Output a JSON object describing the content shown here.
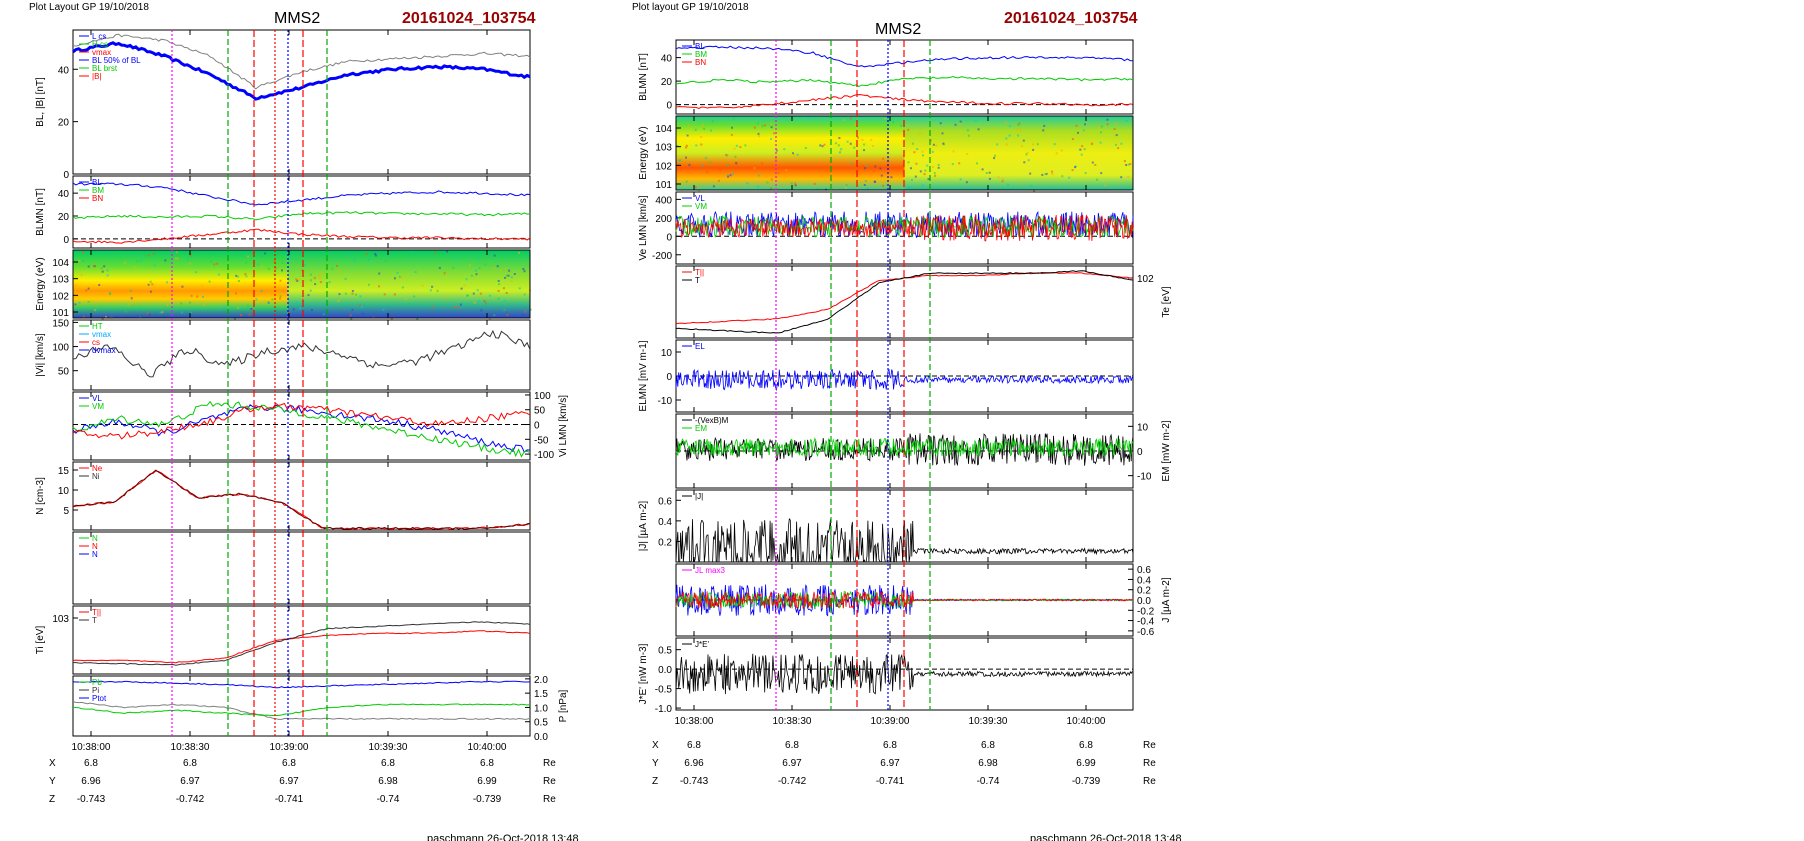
{
  "header": {
    "left": {
      "layout": "Plot Layout GP 19/10/2018",
      "sc": "MMS2",
      "event": "20161024_103754",
      "footer": "paschmann 26-Oct-2018 13:48"
    },
    "right": {
      "layout": "Plot layout GP 19/10/2018",
      "sc": "MMS2",
      "event": "20161024_103754",
      "footer": "paschmann 26-Oct-2018 13:48"
    }
  },
  "colors": {
    "event": "#990000",
    "red": "#ff0000",
    "green": "#00cc00",
    "blue": "#0000ff",
    "magenta": "#ff00ff",
    "gray": "#808080"
  },
  "time_axis": {
    "ticks": [
      "10:38:00",
      "10:38:30",
      "10:39:00",
      "10:39:30",
      "10:40:00"
    ]
  },
  "ephemeris": {
    "rows": [
      {
        "name": "X",
        "values": [
          "6.8",
          "6.8",
          "6.8",
          "6.8",
          "6.8"
        ],
        "unit": "Re"
      },
      {
        "name": "Y",
        "values": [
          "6.96",
          "6.97",
          "6.97",
          "6.98",
          "6.99"
        ],
        "unit": "Re"
      },
      {
        "name": "Z",
        "values": [
          "-0.743",
          "-0.742",
          "-0.741",
          "-0.74",
          "-0.739"
        ],
        "unit": "Re"
      }
    ]
  },
  "chart_data": [
    {
      "type": "line",
      "column": "left",
      "panel": 1,
      "ylabel": "BL, |B| [nT]",
      "yticks": [
        "0",
        "20",
        "40"
      ],
      "ylim": [
        0,
        55
      ],
      "legend": [
        "L cs",
        "H cs",
        "vmax",
        "BL 50% of BL",
        "BL brst",
        "|B|"
      ],
      "series": [
        {
          "name": "BL",
          "values": [
            47,
            50,
            45,
            38,
            29,
            33,
            38,
            40,
            41,
            40,
            37
          ]
        },
        {
          "name": "|B|",
          "values": [
            49,
            53,
            51,
            45,
            33,
            39,
            43,
            44,
            45,
            46,
            45
          ]
        }
      ]
    },
    {
      "type": "line",
      "column": "left",
      "panel": 2,
      "ylabel": "BLMN [nT]",
      "yticks": [
        "0",
        "20",
        "40"
      ],
      "ylim": [
        -8,
        55
      ],
      "legend": [
        "BL",
        "BM",
        "BN"
      ],
      "series": [
        {
          "name": "BL",
          "values": [
            48,
            48,
            45,
            37,
            30,
            34,
            38,
            40,
            41,
            40,
            38
          ]
        },
        {
          "name": "BM",
          "values": [
            18,
            20,
            19,
            20,
            17,
            22,
            23,
            22,
            22,
            21,
            22
          ]
        },
        {
          "name": "BN",
          "values": [
            -2,
            -3,
            0,
            4,
            8,
            4,
            2,
            1,
            1,
            0,
            0
          ]
        }
      ]
    },
    {
      "type": "heatmap",
      "column": "left",
      "panel": 3,
      "ylabel": "Energy (eV)",
      "yticks": [
        "10^4",
        "10^3",
        "10^2",
        "10^1"
      ]
    },
    {
      "type": "line",
      "column": "left",
      "panel": 4,
      "ylabel": "|Vi| [km/s]",
      "yticks": [
        "50",
        "100",
        "150"
      ],
      "ylim": [
        10,
        155
      ],
      "legend": [
        "HT",
        "vmax",
        "cs",
        "dvmax"
      ],
      "series": [
        {
          "name": "|Vi|",
          "values": [
            80,
            100,
            40,
            95,
            60,
            90,
            100,
            85,
            60,
            70,
            95,
            130,
            100
          ]
        }
      ]
    },
    {
      "type": "line",
      "column": "left",
      "panel": 5,
      "ylabel": "Vi LMN [km/s]",
      "yticks": [
        "100",
        "50",
        "0",
        "-50",
        "-100"
      ],
      "ylim": [
        -120,
        110
      ],
      "legend": [
        "VL",
        "VM"
      ],
      "series": [
        {
          "name": "VL",
          "values": [
            -20,
            10,
            -30,
            20,
            60,
            50,
            30,
            10,
            -20,
            -60,
            -90
          ]
        },
        {
          "name": "VM",
          "values": [
            -20,
            20,
            0,
            70,
            60,
            40,
            10,
            -20,
            -50,
            -80,
            -100
          ]
        },
        {
          "name": "VN",
          "values": [
            -30,
            -40,
            -20,
            10,
            60,
            60,
            40,
            20,
            0,
            20,
            40
          ]
        }
      ]
    },
    {
      "type": "line",
      "column": "left",
      "panel": 6,
      "ylabel": "N [cm-3]",
      "yticks": [
        "5",
        "10",
        "15"
      ],
      "ylim": [
        0,
        17
      ],
      "legend": [
        "Ne",
        "Ni"
      ],
      "series": [
        {
          "name": "Ne",
          "values": [
            6,
            7,
            15,
            8,
            9,
            7,
            0.5,
            0.4,
            0.4,
            0.4,
            0.5,
            1.5
          ]
        },
        {
          "name": "Ni",
          "values": [
            6,
            7,
            15,
            8,
            9,
            7,
            0.5,
            0.4,
            0.4,
            0.4,
            0.5,
            1.5
          ]
        }
      ]
    },
    {
      "type": "line",
      "column": "left",
      "panel": 7,
      "legend": [
        "N",
        "N",
        "N"
      ]
    },
    {
      "type": "line",
      "column": "left",
      "panel": 8,
      "ylabel": "Ti [eV]",
      "yticks": [
        "10^3"
      ],
      "legend": [
        "T||",
        "T"
      ],
      "series": [
        {
          "name": "T||",
          "values": [
            1.0,
            1.0,
            0.9,
            1.1,
            1.9,
            2.1,
            2.2,
            2.2,
            2.3,
            2.2
          ]
        },
        {
          "name": "T",
          "values": [
            0.9,
            0.85,
            0.8,
            1.0,
            1.8,
            2.4,
            2.5,
            2.6,
            2.7,
            2.6
          ]
        }
      ]
    },
    {
      "type": "line",
      "column": "left",
      "panel": 9,
      "ylabel": "P [nPa]",
      "yticks": [
        "0.0",
        "0.5",
        "1.0",
        "1.5",
        "2.0"
      ],
      "ylim": [
        0,
        2.1
      ],
      "legend": [
        "Pb",
        "Pi",
        "Ptot"
      ],
      "series": [
        {
          "name": "Pb",
          "values": [
            1.9,
            1.9,
            1.85,
            1.8,
            1.7,
            1.75,
            1.8,
            1.85,
            1.9,
            1.9
          ]
        },
        {
          "name": "Pi",
          "values": [
            1.2,
            1.0,
            1.1,
            1.0,
            0.6,
            0.6,
            0.6,
            0.6,
            0.6,
            0.6
          ]
        },
        {
          "name": "Ptot",
          "values": [
            1.0,
            0.8,
            0.9,
            0.8,
            0.7,
            1.0,
            1.1,
            1.1,
            1.1,
            1.1
          ]
        }
      ]
    },
    {
      "type": "line",
      "column": "right",
      "panel": 1,
      "ylabel": "BLMN [nT]",
      "yticks": [
        "0",
        "20",
        "40"
      ],
      "ylim": [
        -8,
        55
      ],
      "legend": [
        "BL",
        "BM",
        "BN"
      ],
      "series": [
        {
          "name": "BL",
          "values": [
            48,
            49,
            48,
            44,
            32,
            36,
            39,
            40,
            40,
            40,
            38
          ]
        },
        {
          "name": "BM",
          "values": [
            18,
            21,
            19,
            21,
            16,
            22,
            23,
            22,
            22,
            21,
            22
          ]
        },
        {
          "name": "BN",
          "values": [
            -2,
            -3,
            0,
            4,
            8,
            4,
            2,
            1,
            1,
            0,
            0
          ]
        }
      ]
    },
    {
      "type": "heatmap",
      "column": "right",
      "panel": 2,
      "ylabel": "Energy (eV)",
      "yticks": [
        "10^4",
        "10^3",
        "10^2",
        "10^1"
      ]
    },
    {
      "type": "line",
      "column": "right",
      "panel": 3,
      "ylabel": "Ve LMN [km/s]",
      "yticks": [
        "400",
        "200",
        "0",
        "-200"
      ],
      "ylim": [
        -300,
        480
      ],
      "legend": [
        "VL",
        "VM"
      ]
    },
    {
      "type": "line",
      "column": "right",
      "panel": 4,
      "ylabel": "Te [eV]",
      "yticks": [
        "10^2"
      ],
      "legend": [
        "T||",
        "T"
      ],
      "series": [
        {
          "name": "T||",
          "values": [
            1.0,
            1.1,
            1.2,
            1.6,
            2.8,
            3.0,
            3.0,
            3.1,
            3.1,
            2.9
          ]
        },
        {
          "name": "T",
          "values": [
            0.8,
            0.7,
            0.6,
            1.2,
            2.7,
            3.1,
            3.1,
            3.1,
            3.2,
            2.8
          ]
        }
      ]
    },
    {
      "type": "line",
      "column": "right",
      "panel": 5,
      "ylabel": "ELMN [mV m-1]",
      "yticks": [
        "-10",
        "0",
        "10"
      ],
      "ylim": [
        -15,
        15
      ],
      "legend": [
        "EL"
      ]
    },
    {
      "type": "line",
      "column": "right",
      "panel": 6,
      "ylabel": "EM [mW m-2]",
      "yticks": [
        "10",
        "0",
        "-10"
      ],
      "ylim": [
        -15,
        15
      ],
      "legend": [
        "-(VexB)M",
        "EM"
      ]
    },
    {
      "type": "line",
      "column": "right",
      "panel": 7,
      "ylabel": "|J| [µA m-2]",
      "yticks": [
        "0.2",
        "0.4",
        "0.6"
      ],
      "ylim": [
        0,
        0.7
      ],
      "legend": [
        "|J|"
      ]
    },
    {
      "type": "line",
      "column": "right",
      "panel": 8,
      "ylabel": "J [µA m-2]",
      "yticks": [
        "0.6",
        "0.4",
        "0.2",
        "0.0",
        "-0.2",
        "-0.4",
        "-0.6"
      ],
      "ylim": [
        -0.7,
        0.7
      ],
      "legend": [
        "JL max3"
      ]
    },
    {
      "type": "line",
      "column": "right",
      "panel": 9,
      "ylabel": "J*E' [nW m-3]",
      "yticks": [
        "0.5",
        "0.0",
        "-0.5",
        "-1.0"
      ],
      "ylim": [
        -1.05,
        0.8
      ],
      "legend": [
        "J*E'"
      ]
    }
  ]
}
